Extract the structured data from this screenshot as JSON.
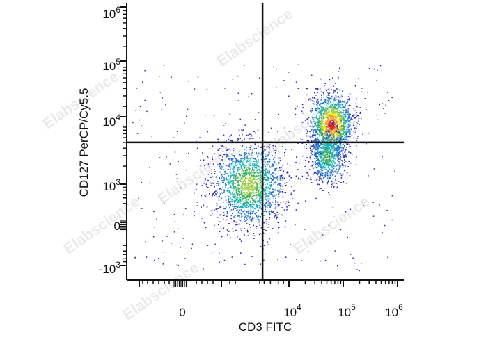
{
  "chart_data": {
    "type": "scatter",
    "subtype": "flow-cytometry-density-dot-plot",
    "xlabel": "CD3 FITC",
    "ylabel": "CD127 PerCP/Cy5.5",
    "x_scale": "biexponential",
    "y_scale": "biexponential",
    "x_ticks": [
      {
        "base": "0",
        "exp": ""
      },
      {
        "base": "10",
        "exp": "4"
      },
      {
        "base": "10",
        "exp": "5"
      },
      {
        "base": "10",
        "exp": "6"
      }
    ],
    "y_ticks": [
      {
        "base": "10",
        "exp": "6"
      },
      {
        "base": "10",
        "exp": "5"
      },
      {
        "base": "10",
        "exp": "4"
      },
      {
        "base": "10",
        "exp": "3"
      },
      {
        "base": "0",
        "exp": ""
      },
      {
        "base": "-10",
        "exp": "3"
      }
    ],
    "quadrant_gate": {
      "x": 1800,
      "y": 5000
    },
    "populations": [
      {
        "name": "",
        "x_center": 700,
        "y_center": 1000,
        "relative_events": 0.42,
        "peak_color": "#9ccd3c"
      },
      {
        "name": "",
        "x_center": 60000,
        "y_center": 10000,
        "relative_events": 0.36,
        "peak_color": "#e8141a"
      },
      {
        "name": "",
        "x_center": 50000,
        "y_center": 3000,
        "relative_events": 0.18,
        "peak_color": "#3fb35a"
      }
    ],
    "grid": false,
    "legend": "none",
    "watermark": "Elabscience",
    "density_palette": [
      "#2b2dbf",
      "#1f6fd6",
      "#15b3b8",
      "#3fb35a",
      "#9ccd3c",
      "#f2e21a",
      "#f39a1c",
      "#e8141a"
    ]
  }
}
